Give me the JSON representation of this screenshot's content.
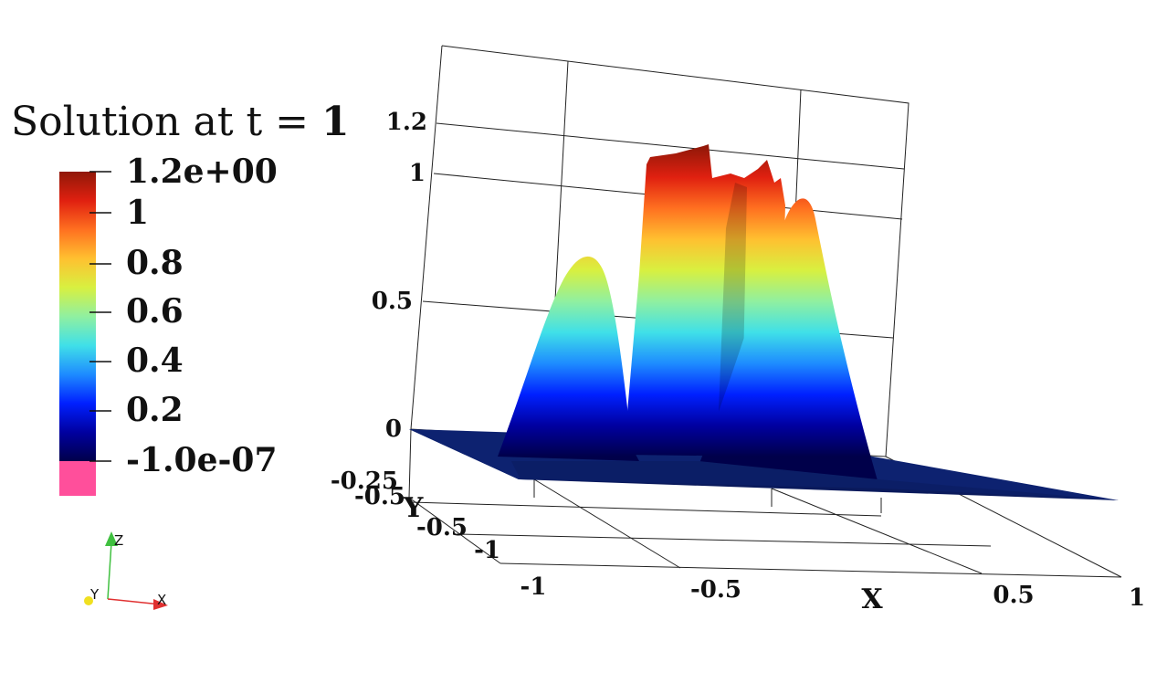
{
  "title": {
    "prefix": "Solution at t = ",
    "value": "1"
  },
  "colorbar": {
    "labels": [
      "1.2e+00",
      "1",
      "0.8",
      "0.6",
      "0.4",
      "0.2",
      "-1.0e-07"
    ],
    "below_range_color": "#ff4f9b",
    "colormap": [
      "#00004a",
      "#0000a0",
      "#0020ff",
      "#1e8cff",
      "#40e0e8",
      "#90f0a0",
      "#d8f040",
      "#ffc030",
      "#ff7020",
      "#e02010",
      "#901808"
    ]
  },
  "axes": {
    "z_ticks": [
      "1.2",
      "1",
      "0.5",
      "0"
    ],
    "y_ticks": [
      "-0.25",
      "-0.5",
      "-0.5",
      "-1"
    ],
    "x_ticks": [
      "-1",
      "-0.5",
      "0.5",
      "1"
    ],
    "x_label": "X",
    "y_label": "Y"
  },
  "orientation": {
    "x": "X",
    "y": "Y",
    "z": "Z",
    "x_color": "#e03030",
    "y_color": "#f0e020",
    "z_color": "#40c040"
  }
}
